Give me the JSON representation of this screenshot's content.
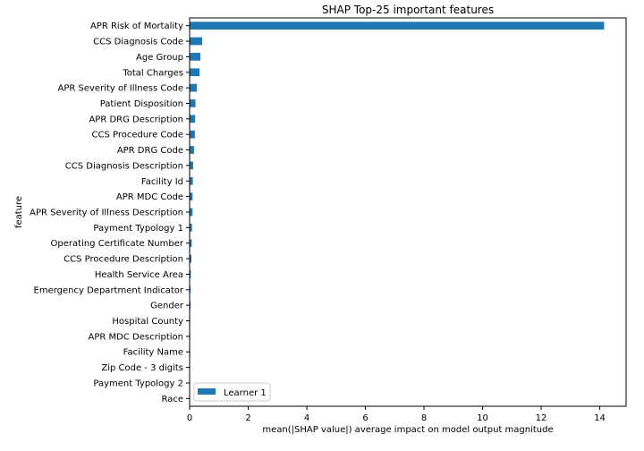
{
  "chart_data": {
    "type": "bar",
    "orientation": "horizontal",
    "title": "SHAP Top-25 important features",
    "xlabel": "mean(|SHAP value|) average impact on model output magnitude",
    "ylabel": "feature",
    "xlim": [
      0,
      14.9
    ],
    "x_ticks": [
      0,
      2,
      4,
      6,
      8,
      10,
      12,
      14
    ],
    "grid": false,
    "legend_position": "lower-left",
    "color": "#1f77b4",
    "categories": [
      "APR Risk of Mortality",
      "CCS Diagnosis Code",
      "Age Group",
      "Total Charges",
      "APR Severity of Illness Code",
      "Patient Disposition",
      "APR DRG Description",
      "CCS Procedure Code",
      "APR DRG Code",
      "CCS Diagnosis Description",
      "Facility Id",
      "APR MDC Code",
      "APR Severity of Illness Description",
      "Payment Typology 1",
      "Operating Certificate Number",
      "CCS Procedure Description",
      "Health Service Area",
      "Emergency Department Indicator",
      "Gender",
      "Hospital County",
      "APR MDC Description",
      "Facility Name",
      "Zip Code - 3 digits",
      "Payment Typology 2",
      "Race"
    ],
    "series": [
      {
        "name": "Learner 1",
        "values": [
          14.15,
          0.43,
          0.37,
          0.34,
          0.25,
          0.2,
          0.19,
          0.18,
          0.15,
          0.12,
          0.11,
          0.1,
          0.1,
          0.08,
          0.07,
          0.06,
          0.04,
          0.03,
          0.03,
          0.02,
          0.02,
          0.02,
          0.01,
          0.01,
          0.01
        ]
      }
    ]
  }
}
